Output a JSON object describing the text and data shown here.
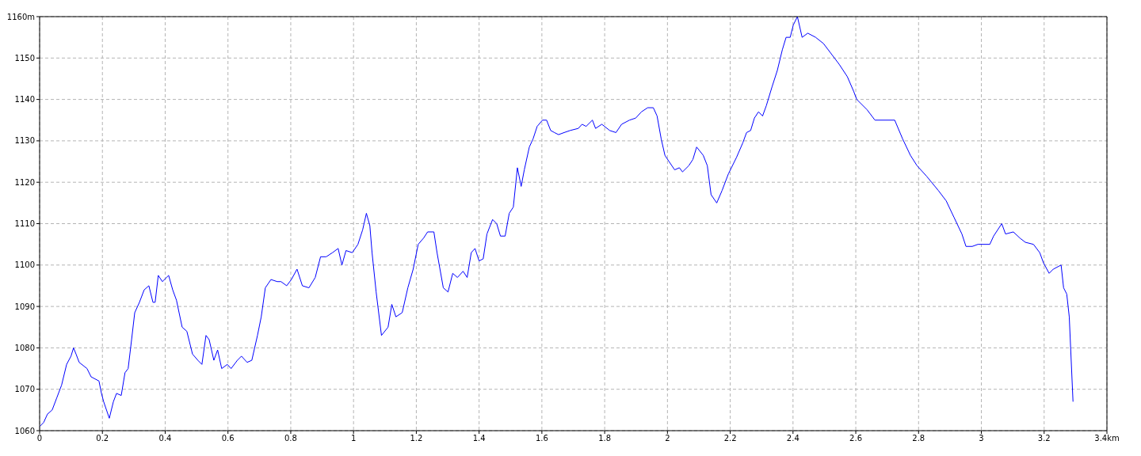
{
  "chart_data": {
    "type": "line",
    "x": [
      0,
      0.013,
      0.025,
      0.04,
      0.055,
      0.07,
      0.086,
      0.1,
      0.108,
      0.116,
      0.126,
      0.151,
      0.164,
      0.189,
      0.197,
      0.204,
      0.222,
      0.235,
      0.245,
      0.26,
      0.272,
      0.282,
      0.293,
      0.303,
      0.318,
      0.333,
      0.348,
      0.361,
      0.368,
      0.378,
      0.391,
      0.411,
      0.424,
      0.436,
      0.454,
      0.469,
      0.487,
      0.504,
      0.517,
      0.53,
      0.54,
      0.555,
      0.567,
      0.58,
      0.598,
      0.61,
      0.63,
      0.643,
      0.661,
      0.676,
      0.694,
      0.706,
      0.719,
      0.737,
      0.757,
      0.769,
      0.787,
      0.802,
      0.82,
      0.837,
      0.858,
      0.878,
      0.895,
      0.913,
      0.933,
      0.951,
      0.963,
      0.976,
      0.996,
      1.014,
      1.029,
      1.041,
      1.052,
      1.059,
      1.072,
      1.089,
      1.11,
      1.122,
      1.135,
      1.155,
      1.173,
      1.19,
      1.206,
      1.223,
      1.236,
      1.256,
      1.266,
      1.286,
      1.301,
      1.316,
      1.331,
      1.349,
      1.362,
      1.375,
      1.387,
      1.4,
      1.413,
      1.425,
      1.443,
      1.456,
      1.468,
      1.483,
      1.496,
      1.509,
      1.522,
      1.534,
      1.544,
      1.56,
      1.572,
      1.585,
      1.602,
      1.615,
      1.628,
      1.64,
      1.653,
      1.671,
      1.69,
      1.716,
      1.728,
      1.741,
      1.761,
      1.771,
      1.791,
      1.816,
      1.836,
      1.854,
      1.879,
      1.899,
      1.917,
      1.937,
      1.955,
      1.967,
      1.98,
      1.992,
      2.005,
      2.023,
      2.038,
      2.048,
      2.068,
      2.081,
      2.093,
      2.114,
      2.127,
      2.139,
      2.157,
      2.174,
      2.194,
      2.22,
      2.24,
      2.252,
      2.265,
      2.277,
      2.29,
      2.303,
      2.315,
      2.333,
      2.35,
      2.366,
      2.378,
      2.391,
      2.401,
      2.414,
      2.429,
      2.447,
      2.472,
      2.497,
      2.522,
      2.547,
      2.573,
      2.593,
      2.603,
      2.636,
      2.661,
      2.724,
      2.749,
      2.774,
      2.795,
      2.825,
      2.863,
      2.888,
      2.913,
      2.938,
      2.951,
      2.971,
      2.989,
      3.027,
      3.039,
      3.065,
      3.077,
      3.102,
      3.123,
      3.14,
      3.166,
      3.186,
      3.198,
      3.216,
      3.229,
      3.254,
      3.262,
      3.272,
      3.28,
      3.292
    ],
    "series": [
      {
        "color": "#0000ff",
        "values": [
          1061,
          1062,
          1064,
          1065,
          1068,
          1071,
          1076,
          1078,
          1080,
          1078.5,
          1076.5,
          1075,
          1073,
          1072,
          1069,
          1067,
          1063,
          1067,
          1069,
          1068.5,
          1074,
          1075,
          1082,
          1088.5,
          1091,
          1094,
          1095,
          1091,
          1091,
          1097.5,
          1096,
          1097.5,
          1094,
          1091.5,
          1085,
          1084,
          1078.5,
          1077,
          1076,
          1083,
          1082,
          1077,
          1079.5,
          1075,
          1076,
          1075,
          1077,
          1078,
          1076.5,
          1077,
          1083,
          1087.5,
          1094.5,
          1096.5,
          1096,
          1096,
          1095,
          1096.5,
          1099,
          1095,
          1094.5,
          1097,
          1102,
          1102,
          1103,
          1104,
          1100,
          1103.5,
          1103,
          1105,
          1108.5,
          1112.5,
          1109.5,
          1103,
          1093.5,
          1083,
          1085,
          1090.5,
          1087.5,
          1088.5,
          1094.5,
          1099,
          1105,
          1106.5,
          1108,
          1108,
          1103,
          1094.5,
          1093.5,
          1098,
          1097,
          1098.5,
          1097,
          1103,
          1104,
          1101,
          1101.5,
          1107.5,
          1111,
          1110,
          1107,
          1107,
          1112.5,
          1114,
          1123.5,
          1119,
          1123,
          1128.5,
          1130.5,
          1133.5,
          1135,
          1135,
          1132.5,
          1132,
          1131.5,
          1132,
          1132.5,
          1133,
          1134,
          1133.5,
          1135,
          1133,
          1134,
          1132.5,
          1132,
          1134,
          1135,
          1135.5,
          1137,
          1138,
          1138,
          1136,
          1130.5,
          1126.5,
          1125,
          1123,
          1123.5,
          1122.5,
          1124,
          1125.5,
          1128.5,
          1126.5,
          1124,
          1117,
          1115,
          1118,
          1122,
          1126,
          1129.5,
          1132,
          1132.5,
          1135.5,
          1137,
          1136,
          1138.5,
          1143,
          1147,
          1152,
          1155,
          1155,
          1158,
          1160,
          1155,
          1156,
          1155,
          1153.5,
          1151,
          1148.5,
          1145.5,
          1142,
          1140,
          1137.5,
          1135,
          1135,
          1130.5,
          1126.5,
          1124,
          1121.5,
          1118,
          1115.5,
          1111.5,
          1107.5,
          1104.5,
          1104.5,
          1105,
          1105,
          1107,
          1110,
          1107.5,
          1108,
          1106.5,
          1105.5,
          1105,
          1103,
          1100.5,
          1098,
          1099,
          1100,
          1094.5,
          1093,
          1087.5,
          1067
        ]
      }
    ],
    "xlim": [
      0,
      3.4
    ],
    "xticks": [
      0,
      0.2,
      0.4,
      0.6,
      0.8,
      1,
      1.2,
      1.4,
      1.6,
      1.8,
      2,
      2.2,
      2.4,
      2.6,
      2.8,
      3,
      3.2,
      {
        "value": 3.4,
        "label": "3.4km"
      }
    ],
    "ylim": [
      1060,
      1160
    ],
    "yticks": [
      1060,
      1070,
      1080,
      1090,
      1100,
      1110,
      1120,
      1130,
      1140,
      1150,
      {
        "value": 1160,
        "label": "1160m"
      }
    ],
    "grid": true,
    "marker": "none",
    "line_style": "solid"
  }
}
